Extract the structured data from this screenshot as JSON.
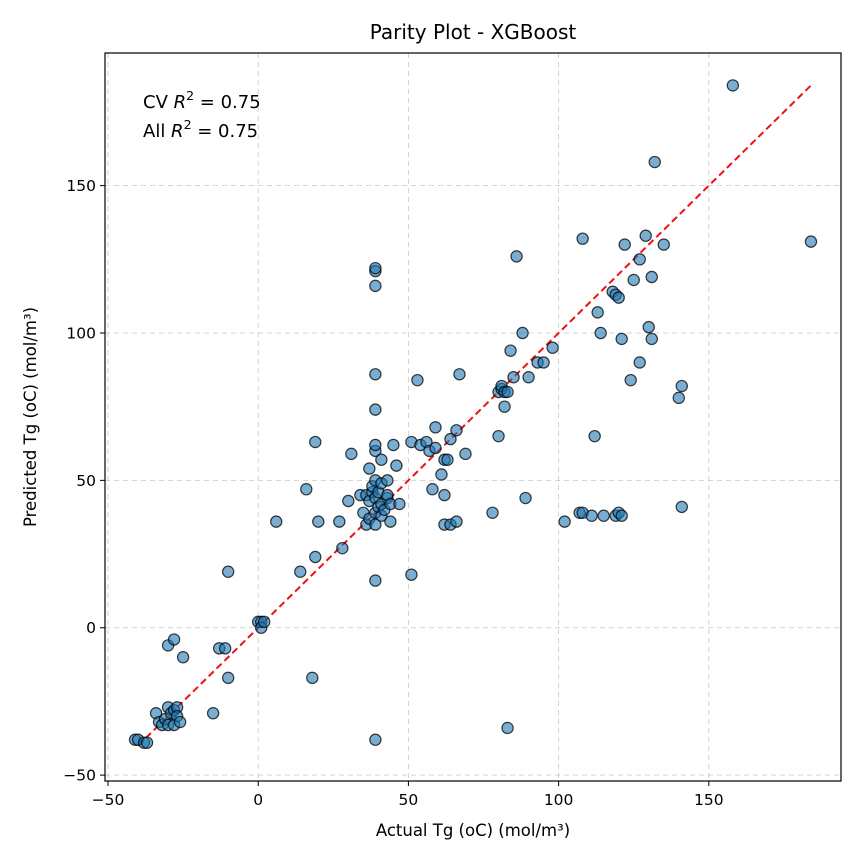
{
  "chart_data": {
    "type": "scatter",
    "title": "Parity Plot - XGBoost",
    "xlabel": "Actual Tg (oC) (mol/m³)",
    "ylabel": "Predicted Tg (oC) (mol/m³)",
    "xlim": [
      -51,
      194
    ],
    "ylim": [
      -52,
      195
    ],
    "xticks": [
      -50,
      0,
      50,
      100,
      150
    ],
    "yticks": [
      -50,
      0,
      50,
      100,
      150
    ],
    "grid": true,
    "annotations": [
      {
        "prefix": "CV ",
        "var": "R",
        "sup": "2",
        "suffix": " = 0.75"
      },
      {
        "prefix": "All ",
        "var": "R",
        "sup": "2",
        "suffix": " = 0.75"
      }
    ],
    "reference_line": {
      "from": [
        -40,
        -40
      ],
      "to": [
        184,
        184
      ],
      "color": "#ee1111",
      "style": "dashed"
    },
    "marker_color": "#1f77b4",
    "points": [
      [
        -41,
        -38
      ],
      [
        -40,
        -38
      ],
      [
        -38,
        -39
      ],
      [
        -37,
        -39
      ],
      [
        -34,
        -29
      ],
      [
        -33,
        -32
      ],
      [
        -32,
        -33
      ],
      [
        -31,
        -31
      ],
      [
        -30,
        -33
      ],
      [
        -30,
        -27
      ],
      [
        -29,
        -29
      ],
      [
        -28,
        -33
      ],
      [
        -28,
        -28
      ],
      [
        -27,
        -27
      ],
      [
        -27,
        -30
      ],
      [
        -26,
        -32
      ],
      [
        -30,
        -6
      ],
      [
        -28,
        -4
      ],
      [
        -25,
        -10
      ],
      [
        -15,
        -29
      ],
      [
        -13,
        -7
      ],
      [
        -11,
        -7
      ],
      [
        -10,
        -17
      ],
      [
        -10,
        19
      ],
      [
        0,
        2
      ],
      [
        1,
        2
      ],
      [
        1,
        0
      ],
      [
        2,
        2
      ],
      [
        6,
        36
      ],
      [
        14,
        19
      ],
      [
        16,
        47
      ],
      [
        18,
        -17
      ],
      [
        19,
        24
      ],
      [
        19,
        63
      ],
      [
        20,
        36
      ],
      [
        27,
        36
      ],
      [
        28,
        27
      ],
      [
        30,
        43
      ],
      [
        31,
        59
      ],
      [
        34,
        45
      ],
      [
        35,
        39
      ],
      [
        36,
        35
      ],
      [
        36,
        45
      ],
      [
        37,
        37
      ],
      [
        37,
        43
      ],
      [
        37,
        54
      ],
      [
        38,
        46
      ],
      [
        38,
        48
      ],
      [
        39,
        39
      ],
      [
        39,
        44
      ],
      [
        39,
        -38
      ],
      [
        39,
        16
      ],
      [
        39,
        35
      ],
      [
        39,
        50
      ],
      [
        39,
        60
      ],
      [
        39,
        62
      ],
      [
        39,
        74
      ],
      [
        39,
        86
      ],
      [
        39,
        116
      ],
      [
        39,
        121
      ],
      [
        39,
        122
      ],
      [
        40,
        41
      ],
      [
        40,
        46
      ],
      [
        41,
        38
      ],
      [
        41,
        42
      ],
      [
        41,
        49
      ],
      [
        41,
        57
      ],
      [
        42,
        40
      ],
      [
        43,
        44
      ],
      [
        43,
        45
      ],
      [
        43,
        50
      ],
      [
        44,
        36
      ],
      [
        44,
        42
      ],
      [
        45,
        62
      ],
      [
        46,
        55
      ],
      [
        47,
        42
      ],
      [
        51,
        63
      ],
      [
        51,
        18
      ],
      [
        53,
        84
      ],
      [
        54,
        62
      ],
      [
        56,
        63
      ],
      [
        57,
        60
      ],
      [
        58,
        47
      ],
      [
        59,
        61
      ],
      [
        59,
        68
      ],
      [
        61,
        52
      ],
      [
        62,
        45
      ],
      [
        62,
        57
      ],
      [
        62,
        35
      ],
      [
        63,
        57
      ],
      [
        64,
        35
      ],
      [
        64,
        64
      ],
      [
        66,
        36
      ],
      [
        66,
        67
      ],
      [
        67,
        86
      ],
      [
        69,
        59
      ],
      [
        78,
        39
      ],
      [
        80,
        65
      ],
      [
        80,
        80
      ],
      [
        81,
        81
      ],
      [
        81,
        82
      ],
      [
        82,
        80
      ],
      [
        82,
        75
      ],
      [
        83,
        80
      ],
      [
        83,
        -34
      ],
      [
        84,
        94
      ],
      [
        85,
        85
      ],
      [
        86,
        126
      ],
      [
        88,
        100
      ],
      [
        89,
        44
      ],
      [
        90,
        85
      ],
      [
        93,
        90
      ],
      [
        95,
        90
      ],
      [
        98,
        95
      ],
      [
        102,
        36
      ],
      [
        107,
        39
      ],
      [
        108,
        39
      ],
      [
        108,
        132
      ],
      [
        111,
        38
      ],
      [
        112,
        65
      ],
      [
        113,
        107
      ],
      [
        114,
        100
      ],
      [
        115,
        38
      ],
      [
        118,
        114
      ],
      [
        119,
        113
      ],
      [
        119,
        38
      ],
      [
        120,
        112
      ],
      [
        120,
        39
      ],
      [
        121,
        38
      ],
      [
        121,
        98
      ],
      [
        122,
        130
      ],
      [
        124,
        84
      ],
      [
        125,
        118
      ],
      [
        127,
        125
      ],
      [
        127,
        90
      ],
      [
        129,
        133
      ],
      [
        130,
        102
      ],
      [
        131,
        98
      ],
      [
        131,
        119
      ],
      [
        132,
        158
      ],
      [
        135,
        130
      ],
      [
        140,
        78
      ],
      [
        141,
        82
      ],
      [
        141,
        41
      ],
      [
        158,
        184
      ],
      [
        184,
        131
      ]
    ]
  }
}
